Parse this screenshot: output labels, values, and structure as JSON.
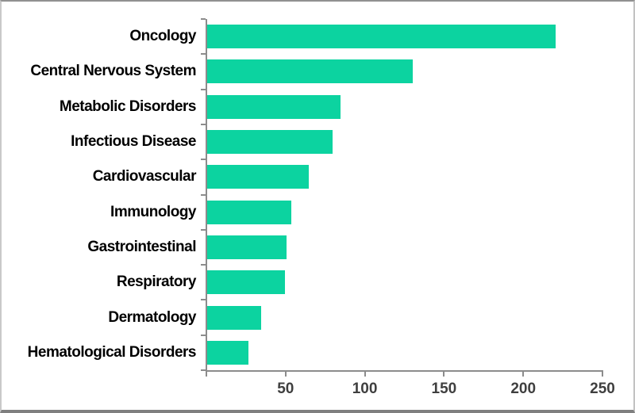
{
  "chart_data": {
    "type": "bar",
    "orientation": "horizontal",
    "title": "",
    "xlabel": "",
    "ylabel": "",
    "categories": [
      "Oncology",
      "Central Nervous System",
      "Metabolic Disorders",
      "Infectious Disease",
      "Cardiovascular",
      "Immunology",
      "Gastrointestinal",
      "Respiratory",
      "Dermatology",
      "Hematological Disorders"
    ],
    "values": [
      220,
      130,
      84,
      79,
      64,
      53,
      50,
      49,
      34,
      26
    ],
    "xlim": [
      0,
      250
    ],
    "x_ticks": [
      0,
      50,
      100,
      150,
      200,
      250
    ],
    "x_tick_labels": [
      "50",
      "100",
      "150",
      "200",
      "250"
    ],
    "grid": false,
    "legend": false
  },
  "colors": {
    "bar": "#0cd3a0",
    "axis": "#8c8c8c",
    "tick_label": "#3f3f3f",
    "category_label": "#000000",
    "background": "#ffffff"
  }
}
